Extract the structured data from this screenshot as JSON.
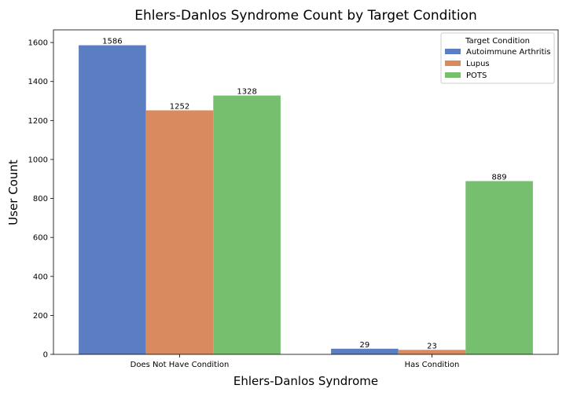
{
  "chart_data": {
    "type": "bar",
    "title": "Ehlers-Danlos Syndrome Count by Target Condition",
    "xlabel": "Ehlers-Danlos Syndrome",
    "ylabel": "User Count",
    "categories": [
      "Does Not Have Condition",
      "Has Condition"
    ],
    "series": [
      {
        "name": "Autoimmune Arthritis",
        "values": [
          1586,
          29
        ],
        "color": "#5b7ec2"
      },
      {
        "name": "Lupus",
        "values": [
          1252,
          23
        ],
        "color": "#d98b5f"
      },
      {
        "name": "POTS",
        "values": [
          1328,
          889
        ],
        "color": "#76bf6e"
      }
    ],
    "ylim": [
      0,
      1665
    ],
    "yticks": [
      0,
      200,
      400,
      600,
      800,
      1000,
      1200,
      1400,
      1600
    ],
    "legend": {
      "title": "Target Condition",
      "placement": "top-right"
    },
    "grid": false
  }
}
